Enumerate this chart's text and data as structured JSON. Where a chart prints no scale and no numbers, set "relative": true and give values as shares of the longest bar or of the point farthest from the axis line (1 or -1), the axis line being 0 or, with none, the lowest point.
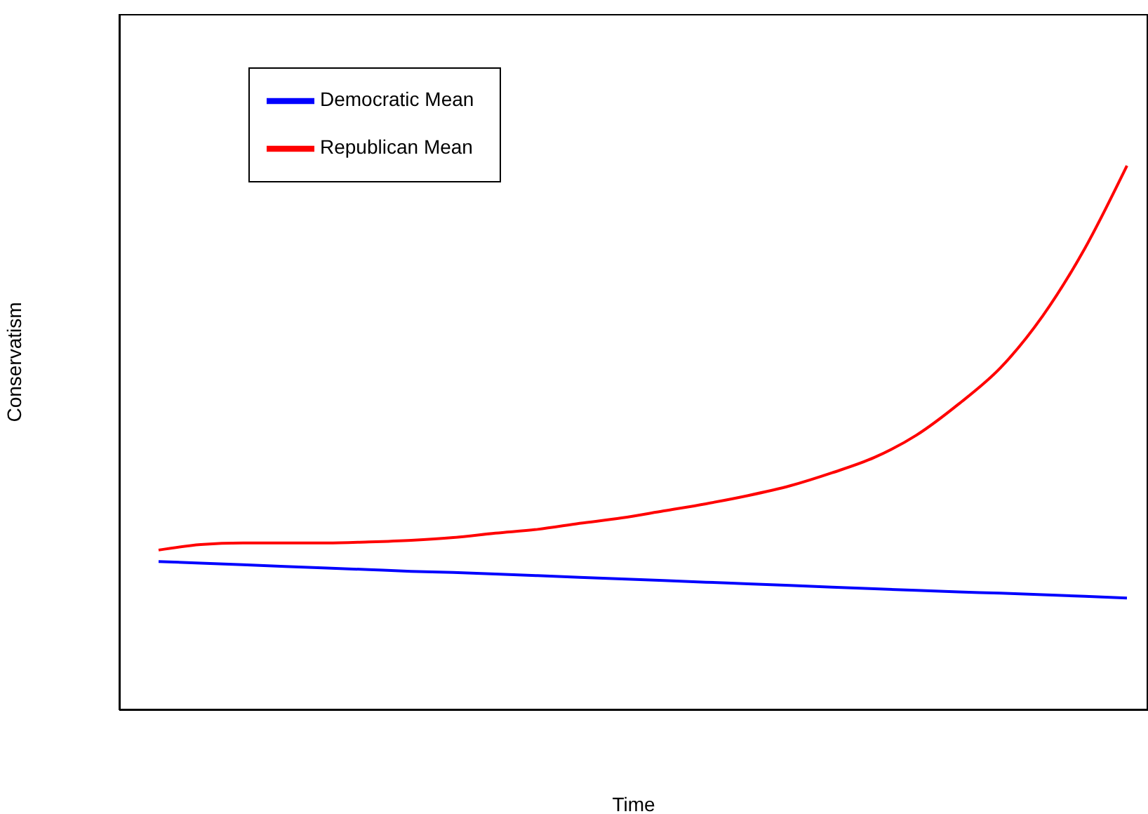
{
  "chart_data": {
    "type": "line",
    "relative": true,
    "xlabel": "Time",
    "ylabel": "Conservatism",
    "legend": "top left",
    "categories": [
      null,
      null,
      null,
      null,
      null,
      null,
      null,
      null,
      null,
      null,
      null,
      null,
      null,
      null,
      null,
      null,
      null,
      null,
      null,
      null,
      null,
      null,
      null,
      null
    ],
    "series": [
      {
        "name": "Democratic Mean",
        "color": "#0000ff",
        "values": [
          0.273,
          0.27,
          0.267,
          0.264,
          0.261,
          0.258,
          0.255,
          0.253,
          0.25,
          0.247,
          0.244,
          0.241,
          0.238,
          0.235,
          0.232,
          0.229,
          0.226,
          0.223,
          0.22,
          0.217,
          0.215,
          0.212,
          0.209,
          0.206
        ]
      },
      {
        "name": "Republican Mean",
        "color": "#ff0000",
        "values": [
          0.294,
          0.304,
          0.307,
          0.307,
          0.307,
          0.309,
          0.312,
          0.317,
          0.325,
          0.332,
          0.343,
          0.353,
          0.366,
          0.379,
          0.394,
          0.412,
          0.436,
          0.464,
          0.505,
          0.562,
          0.629,
          0.724,
          0.848,
          1
        ]
      }
    ]
  }
}
